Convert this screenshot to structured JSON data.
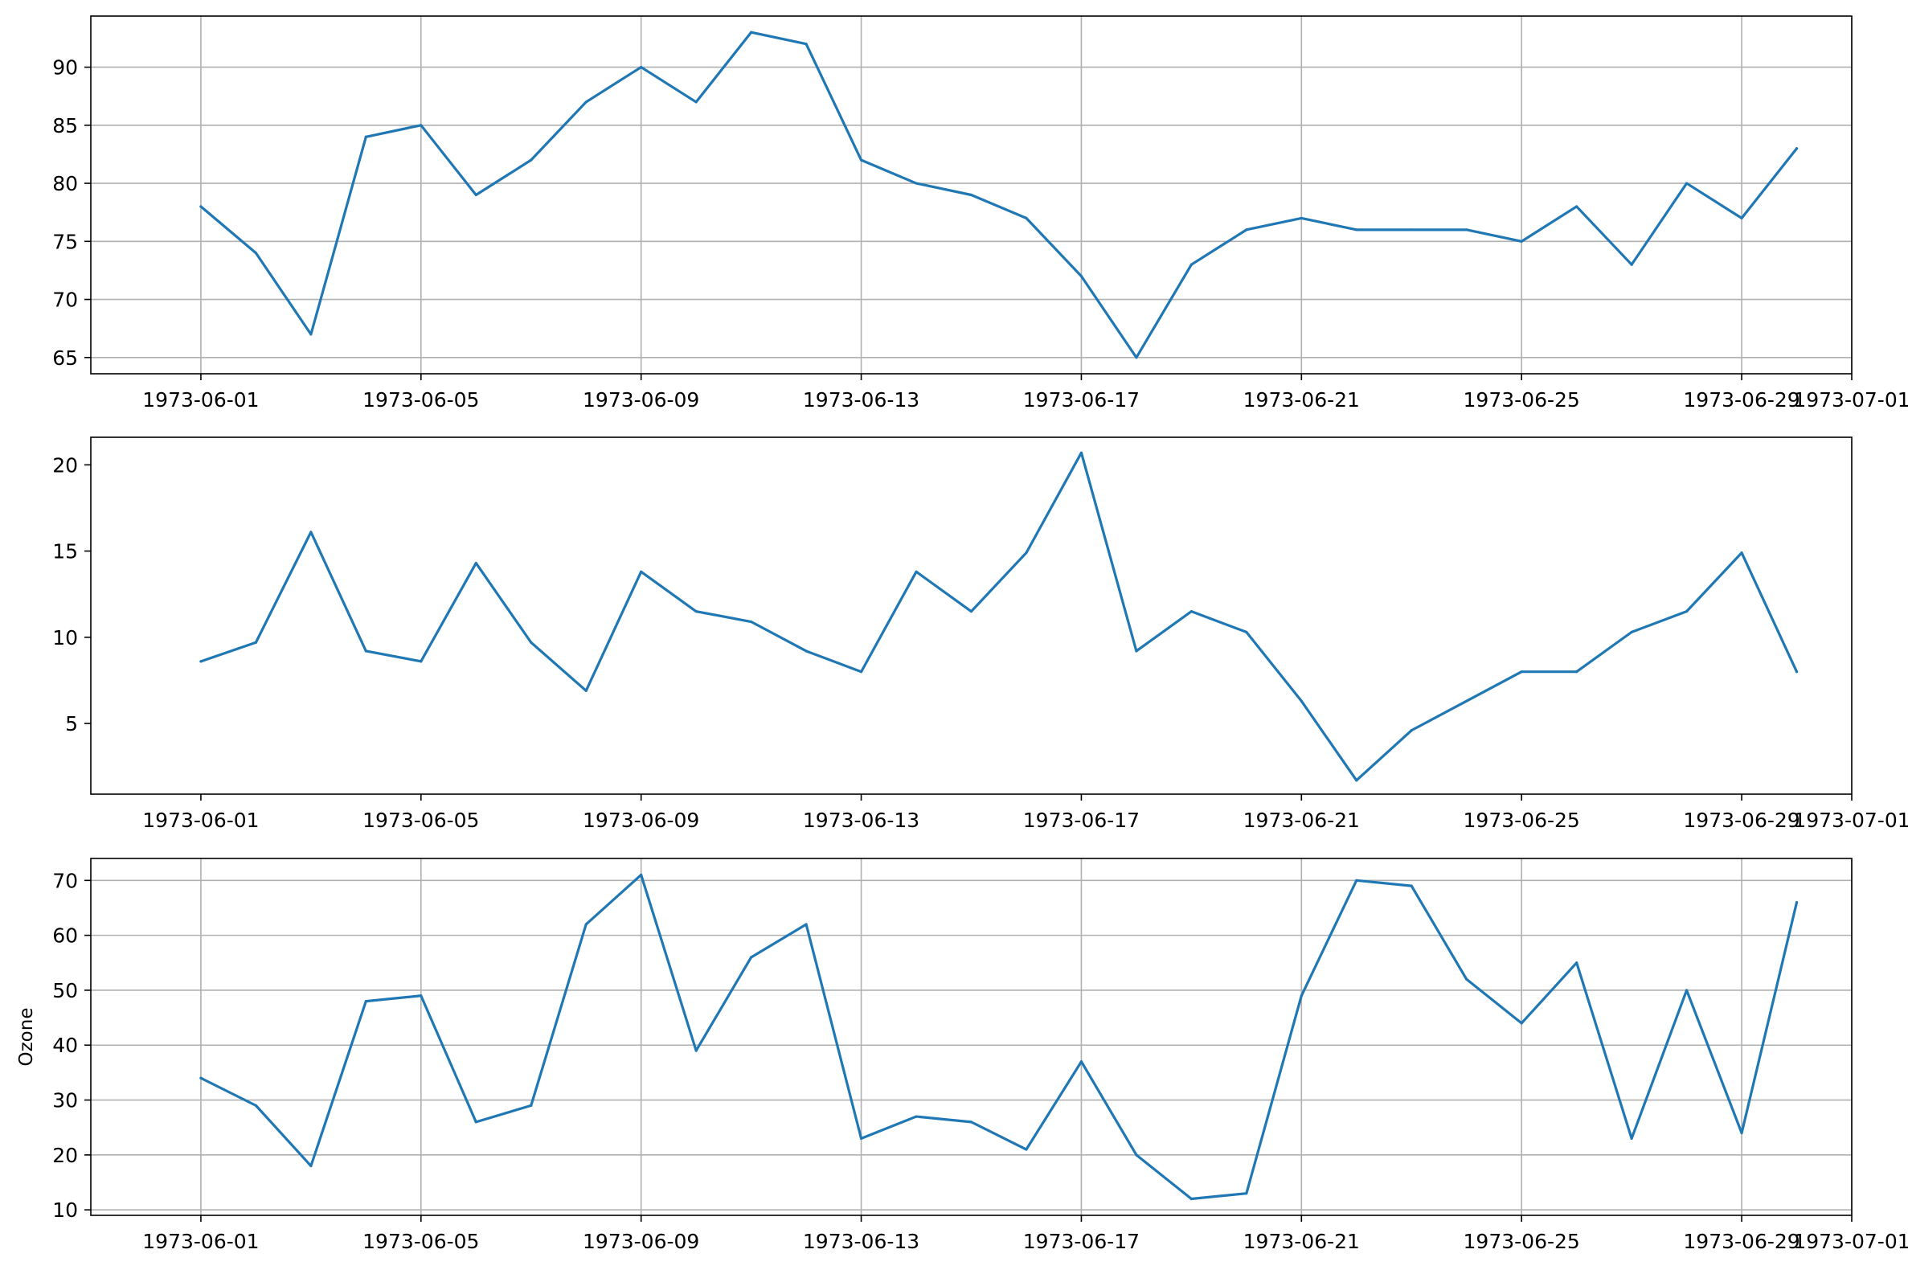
{
  "colors": {
    "series": "#1f77b4",
    "grid": "#b0b0b0",
    "axes": "#000000"
  },
  "chart_data": [
    {
      "type": "line",
      "title": "",
      "xlabel": "",
      "ylabel": "",
      "grid": true,
      "x_ticks": [
        "1973-06-01",
        "1973-06-05",
        "1973-06-09",
        "1973-06-13",
        "1973-06-17",
        "1973-06-21",
        "1973-06-25",
        "1973-06-29",
        "1973-07-01"
      ],
      "y_ticks": [
        65,
        70,
        75,
        80,
        85,
        90
      ],
      "ylim": [
        63.6,
        94.4
      ],
      "xlim": [
        "1973-05-30",
        "1973-07-01"
      ],
      "x": [
        "1973-06-01",
        "1973-06-02",
        "1973-06-03",
        "1973-06-04",
        "1973-06-05",
        "1973-06-06",
        "1973-06-07",
        "1973-06-08",
        "1973-06-09",
        "1973-06-10",
        "1973-06-11",
        "1973-06-12",
        "1973-06-13",
        "1973-06-14",
        "1973-06-15",
        "1973-06-16",
        "1973-06-17",
        "1973-06-18",
        "1973-06-19",
        "1973-06-20",
        "1973-06-21",
        "1973-06-22",
        "1973-06-23",
        "1973-06-24",
        "1973-06-25",
        "1973-06-26",
        "1973-06-27",
        "1973-06-28",
        "1973-06-29",
        "1973-06-30"
      ],
      "series": [
        {
          "values": [
            78,
            74,
            67,
            84,
            85,
            79,
            82,
            87,
            90,
            87,
            93,
            92,
            82,
            80,
            79,
            77,
            72,
            65,
            73,
            76,
            77,
            76,
            76,
            76,
            75,
            78,
            73,
            80,
            77,
            83
          ]
        }
      ]
    },
    {
      "type": "line",
      "title": "",
      "xlabel": "",
      "ylabel": "",
      "grid": false,
      "x_ticks": [
        "1973-06-01",
        "1973-06-05",
        "1973-06-09",
        "1973-06-13",
        "1973-06-17",
        "1973-06-21",
        "1973-06-25",
        "1973-06-29",
        "1973-07-01"
      ],
      "y_ticks": [
        5,
        10,
        15,
        20
      ],
      "ylim": [
        0.9,
        21.6
      ],
      "xlim": [
        "1973-05-30",
        "1973-07-01"
      ],
      "x": [
        "1973-06-01",
        "1973-06-02",
        "1973-06-03",
        "1973-06-04",
        "1973-06-05",
        "1973-06-06",
        "1973-06-07",
        "1973-06-08",
        "1973-06-09",
        "1973-06-10",
        "1973-06-11",
        "1973-06-12",
        "1973-06-13",
        "1973-06-14",
        "1973-06-15",
        "1973-06-16",
        "1973-06-17",
        "1973-06-18",
        "1973-06-19",
        "1973-06-20",
        "1973-06-21",
        "1973-06-22",
        "1973-06-23",
        "1973-06-24",
        "1973-06-25",
        "1973-06-26",
        "1973-06-27",
        "1973-06-28",
        "1973-06-29",
        "1973-06-30"
      ],
      "series": [
        {
          "values": [
            8.6,
            9.7,
            16.1,
            9.2,
            8.6,
            14.3,
            9.7,
            6.9,
            13.8,
            11.5,
            10.9,
            9.2,
            8.0,
            13.8,
            11.5,
            14.9,
            20.7,
            9.2,
            11.5,
            10.3,
            6.3,
            1.7,
            4.6,
            6.3,
            8.0,
            8.0,
            10.3,
            11.5,
            14.9,
            8.0
          ]
        }
      ]
    },
    {
      "type": "line",
      "title": "",
      "xlabel": "",
      "ylabel": "Ozone",
      "grid": true,
      "x_ticks": [
        "1973-06-01",
        "1973-06-05",
        "1973-06-09",
        "1973-06-13",
        "1973-06-17",
        "1973-06-21",
        "1973-06-25",
        "1973-06-29",
        "1973-07-01"
      ],
      "y_ticks": [
        10,
        20,
        30,
        40,
        50,
        60,
        70
      ],
      "ylim": [
        9.0,
        74.0
      ],
      "xlim": [
        "1973-05-30",
        "1973-07-01"
      ],
      "x": [
        "1973-06-01",
        "1973-06-02",
        "1973-06-03",
        "1973-06-04",
        "1973-06-05",
        "1973-06-06",
        "1973-06-07",
        "1973-06-08",
        "1973-06-09",
        "1973-06-10",
        "1973-06-11",
        "1973-06-12",
        "1973-06-13",
        "1973-06-14",
        "1973-06-15",
        "1973-06-16",
        "1973-06-17",
        "1973-06-18",
        "1973-06-19",
        "1973-06-20",
        "1973-06-21",
        "1973-06-22",
        "1973-06-23",
        "1973-06-24",
        "1973-06-25",
        "1973-06-26",
        "1973-06-27",
        "1973-06-28",
        "1973-06-29",
        "1973-06-30"
      ],
      "series": [
        {
          "values": [
            34,
            29,
            18,
            48,
            49,
            26,
            29,
            62,
            71,
            39,
            56,
            62,
            23,
            27,
            26,
            21,
            37,
            20,
            12,
            13,
            49,
            70,
            69,
            52,
            44,
            55,
            23,
            50,
            24,
            66
          ]
        }
      ]
    }
  ]
}
